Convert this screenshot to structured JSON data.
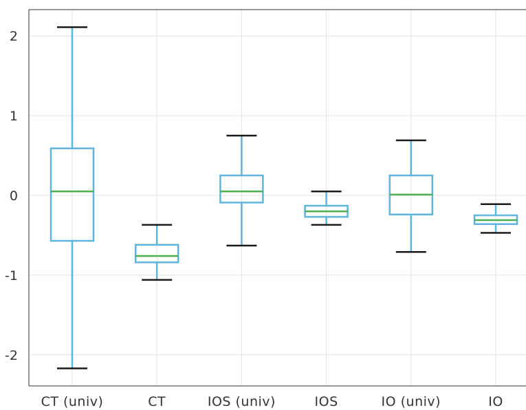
{
  "chart_data": {
    "type": "box",
    "categories": [
      "CT (univ)",
      "CT",
      "IOS (univ)",
      "IOS",
      "IO (univ)",
      "IO"
    ],
    "boxes": [
      {
        "category": "CT (univ)",
        "whisker_low": -2.17,
        "q1": -0.57,
        "median": 0.05,
        "q3": 0.59,
        "whisker_high": 2.11
      },
      {
        "category": "CT",
        "whisker_low": -1.06,
        "q1": -0.84,
        "median": -0.76,
        "q3": -0.62,
        "whisker_high": -0.37
      },
      {
        "category": "IOS (univ)",
        "whisker_low": -0.63,
        "q1": -0.09,
        "median": 0.05,
        "q3": 0.25,
        "whisker_high": 0.75
      },
      {
        "category": "IOS",
        "whisker_low": -0.37,
        "q1": -0.27,
        "median": -0.2,
        "q3": -0.13,
        "whisker_high": 0.05
      },
      {
        "category": "IO (univ)",
        "whisker_low": -0.71,
        "q1": -0.24,
        "median": 0.01,
        "q3": 0.25,
        "whisker_high": 0.69
      },
      {
        "category": "IO",
        "whisker_low": -0.47,
        "q1": -0.36,
        "median": -0.31,
        "q3": -0.25,
        "whisker_high": -0.11
      }
    ],
    "yticks": [
      "-2",
      "-1",
      "0",
      "1",
      "2"
    ],
    "ylim": [
      -2.39,
      2.33
    ],
    "grid": true,
    "title": "",
    "xlabel": "",
    "ylabel": "",
    "colors": {
      "box": "#5fb4de",
      "median": "#4caf50",
      "cap": "#1a1a1a",
      "grid": "#e3e3e3",
      "axis": "#333333"
    }
  }
}
